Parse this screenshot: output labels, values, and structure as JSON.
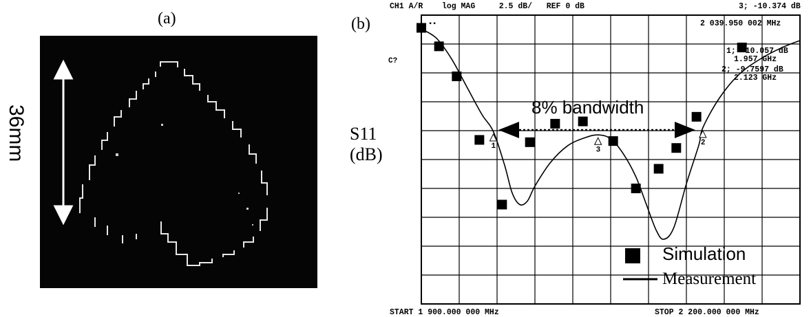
{
  "panel_a": {
    "label": "(a)",
    "dimension_label": "36mm"
  },
  "panel_b": {
    "label": "(b)",
    "y_axis_label_line1": "S11",
    "y_axis_label_line2": "(dB)",
    "header_left": "CH1 A/R    log MAG     2.5 dB/   REF 0 dB",
    "header_right": "3; -10.374 dB",
    "marker_active_freq": "2 039.950 002 MHz",
    "marker1_value": "1; -10.057 dB",
    "marker1_freq": "1.957 GHz",
    "marker2_value": "2; -9.7597 dB",
    "marker2_freq": "2.123 GHz",
    "ref_label": "C?",
    "start_label": "START 1 900.000 000 MHz",
    "stop_label": "STOP 2 200.000 000 MHz",
    "bandwidth_label": "8% bandwidth",
    "legend_simulation": "Simulation",
    "legend_measurement": "Measurement"
  },
  "chart_data": {
    "type": "line",
    "xlabel": "",
    "ylabel": "S11 (dB)",
    "xlim": [
      1900,
      2200
    ],
    "ylim": [
      -25,
      0
    ],
    "x_unit": "MHz",
    "y_scale_per_division": 2.5,
    "grid": true,
    "legend_placement": "bottom-right",
    "series": [
      {
        "name": "Measurement",
        "style": "line",
        "x": [
          1900,
          1912,
          1924,
          1936,
          1948,
          1957,
          1966,
          1972,
          1978,
          1984,
          1990,
          2002,
          2016,
          2030,
          2040,
          2050,
          2060,
          2070,
          2078,
          2086,
          2092,
          2100,
          2110,
          2120,
          2123,
          2136,
          2152,
          2170,
          2186,
          2200
        ],
        "y": [
          -1.2,
          -2.0,
          -3.8,
          -6.2,
          -8.6,
          -10.06,
          -13.0,
          -15.4,
          -16.4,
          -16.1,
          -14.8,
          -12.8,
          -11.3,
          -10.6,
          -10.37,
          -10.7,
          -12.0,
          -14.0,
          -16.3,
          -18.6,
          -19.4,
          -18.4,
          -14.6,
          -11.2,
          -9.76,
          -7.2,
          -5.1,
          -3.7,
          -2.8,
          -2.2
        ]
      },
      {
        "name": "Simulation",
        "style": "markers",
        "x": [
          1900,
          1914,
          1928,
          1946,
          1964,
          1986,
          2006,
          2028,
          2052,
          2070,
          2088,
          2102,
          2118,
          2154
        ],
        "y": [
          -1.1,
          -2.7,
          -5.3,
          -10.8,
          -16.4,
          -11.0,
          -9.4,
          -9.2,
          -10.9,
          -15.0,
          -13.3,
          -11.5,
          -8.8,
          -2.8
        ]
      }
    ],
    "markers": [
      {
        "id": "1",
        "x": 1957,
        "y": -10.057
      },
      {
        "id": "2",
        "x": 2123,
        "y": -9.7597
      },
      {
        "id": "3",
        "x": 2040,
        "y": -10.374
      }
    ]
  }
}
